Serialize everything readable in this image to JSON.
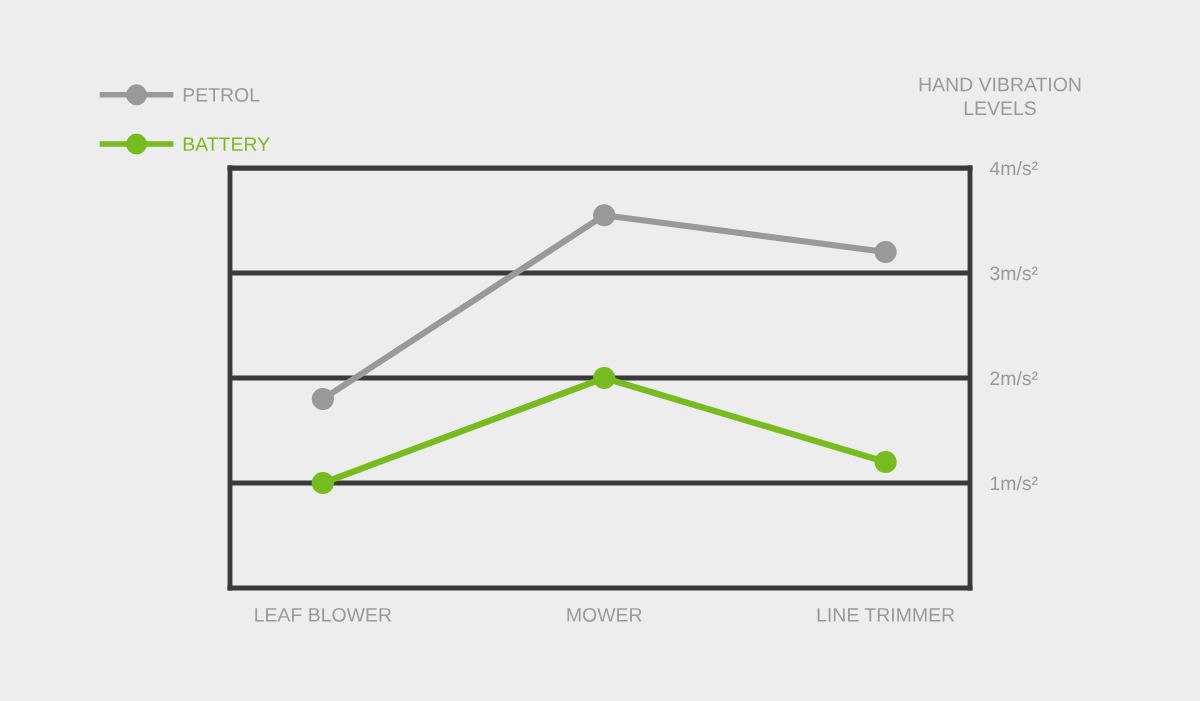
{
  "chart_data": {
    "type": "line",
    "ylabel": "HAND VIBRATION\nLEVELS",
    "categories": [
      "LEAF BLOWER",
      "MOWER",
      "LINE TRIMMER"
    ],
    "series": [
      {
        "name": "PETROL",
        "color": "#999999",
        "values": [
          1.8,
          3.55,
          3.2
        ]
      },
      {
        "name": "BATTERY",
        "color": "#77bc1f",
        "values": [
          1.0,
          2.0,
          1.2
        ]
      }
    ],
    "ylim": [
      0,
      4
    ],
    "yticks": [
      {
        "value": 1,
        "label": "1m/s²"
      },
      {
        "value": 2,
        "label": "2m/s²"
      },
      {
        "value": 3,
        "label": "3m/s²"
      },
      {
        "value": 4,
        "label": "4m/s²"
      }
    ],
    "grid": "y",
    "legend": "top left",
    "marker": "circle",
    "line_style": "solid"
  }
}
